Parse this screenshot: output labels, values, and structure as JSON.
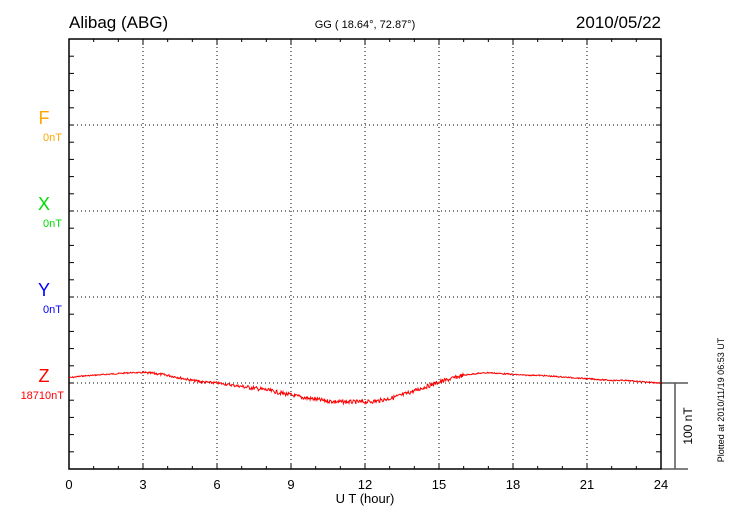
{
  "chart_data": {
    "type": "line",
    "title": "Alibag (ABG)",
    "subtitle": "GG ( 18.64°,  72.87°)",
    "date": "2010/05/22",
    "xlabel": "U T (hour)",
    "xlim": [
      0,
      24
    ],
    "xticks": [
      0,
      3,
      6,
      9,
      12,
      15,
      18,
      21,
      24
    ],
    "scale_label": "100 nT",
    "scale_nT": 100,
    "plotted_note": "Plotted at 2010/11/19 06:53 UT",
    "grid": true,
    "components": [
      {
        "name": "F",
        "baseline_label": "0nT",
        "color": "#ffa500",
        "values": []
      },
      {
        "name": "X",
        "baseline_label": "0nT",
        "color": "#00dd00",
        "values": []
      },
      {
        "name": "Y",
        "baseline_label": "0nT",
        "color": "#0000ff",
        "values": []
      },
      {
        "name": "Z",
        "baseline_label": "18710nT",
        "color": "#ff0000",
        "x_step_hours": 0.5,
        "values": [
          6,
          8,
          9,
          10,
          11,
          12,
          12,
          11,
          9,
          6,
          3,
          1,
          0,
          -2,
          -4,
          -6,
          -8,
          -11,
          -14,
          -17,
          -19,
          -21,
          -22,
          -22,
          -22,
          -21,
          -18,
          -14,
          -9,
          -4,
          1,
          5,
          9,
          11,
          12,
          11,
          10,
          9,
          9,
          8,
          7,
          6,
          5,
          4,
          3,
          3,
          2,
          1,
          0
        ]
      }
    ]
  }
}
